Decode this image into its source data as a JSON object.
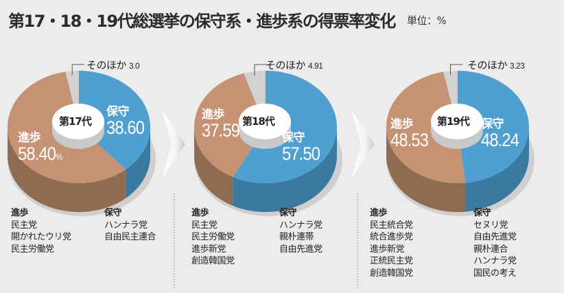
{
  "header": {
    "title": "第17・18・19代総選挙の保守系・進歩系の得票率変化",
    "unit": "単位：%"
  },
  "colors": {
    "conservative_top": "#4fa0d0",
    "conservative_side": "#3a7aa0",
    "progressive_top": "#c59273",
    "progressive_side": "#8f6b51",
    "other_top": "#d2d2d2",
    "background": "#ececec"
  },
  "charts": [
    {
      "era": "第17代",
      "other_label": "そのほか",
      "other_value": "3.0",
      "progressive_label": "進歩",
      "progressive_value": "58.40",
      "progressive_pct": "%",
      "conservative_label": "保守",
      "conservative_value": "38.60",
      "legend_progressive_header": "進歩",
      "legend_progressive": [
        "民主党",
        "開かれたウリ党",
        "民主労働党"
      ],
      "legend_conservative_header": "保守",
      "legend_conservative": [
        "ハンナラ党",
        "自由民主連合"
      ]
    },
    {
      "era": "第18代",
      "other_label": "そのほか",
      "other_value": "4.91",
      "progressive_label": "進歩",
      "progressive_value": "37.59",
      "conservative_label": "保守",
      "conservative_value": "57.50",
      "legend_progressive_header": "進歩",
      "legend_progressive": [
        "民主党",
        "民主労働党",
        "進歩新党",
        "創造韓国党"
      ],
      "legend_conservative_header": "保守",
      "legend_conservative": [
        "ハンナラ党",
        "親朴連帯",
        "自由先進党"
      ]
    },
    {
      "era": "第19代",
      "other_label": "そのほか",
      "other_value": "3.23",
      "progressive_label": "進歩",
      "progressive_value": "48.53",
      "conservative_label": "保守",
      "conservative_value": "48.24",
      "legend_progressive_header": "進歩",
      "legend_progressive": [
        "民主統合党",
        "統合進歩党",
        "進歩新党",
        "正統民主党",
        "創造韓国党"
      ],
      "legend_conservative_header": "保守",
      "legend_conservative": [
        "セヌリ党",
        "自由先進党",
        "親朴連合",
        "ハンナラ党",
        "国民の考え"
      ]
    }
  ],
  "chart_data": {
    "type": "pie",
    "title": "第17・18・19代総選挙の保守系・進歩系の得票率変化",
    "unit": "%",
    "categories": [
      "保守",
      "進歩",
      "そのほか"
    ],
    "series": [
      {
        "name": "第17代",
        "values": [
          38.6,
          58.4,
          3.0
        ]
      },
      {
        "name": "第18代",
        "values": [
          57.5,
          37.59,
          4.91
        ]
      },
      {
        "name": "第19代",
        "values": [
          48.24,
          48.53,
          3.23
        ]
      }
    ],
    "legend_parties": {
      "第17代": {
        "進歩": [
          "民主党",
          "開かれたウリ党",
          "民主労働党"
        ],
        "保守": [
          "ハンナラ党",
          "自由民主連合"
        ]
      },
      "第18代": {
        "進歩": [
          "民主党",
          "民主労働党",
          "進歩新党",
          "創造韓国党"
        ],
        "保守": [
          "ハンナラ党",
          "親朴連帯",
          "自由先進党"
        ]
      },
      "第19代": {
        "進歩": [
          "民主統合党",
          "統合進歩党",
          "進歩新党",
          "正統民主党",
          "創造韓国党"
        ],
        "保守": [
          "セヌリ党",
          "自由先進党",
          "親朴連合",
          "ハンナラ党",
          "国民の考え"
        ]
      }
    }
  }
}
